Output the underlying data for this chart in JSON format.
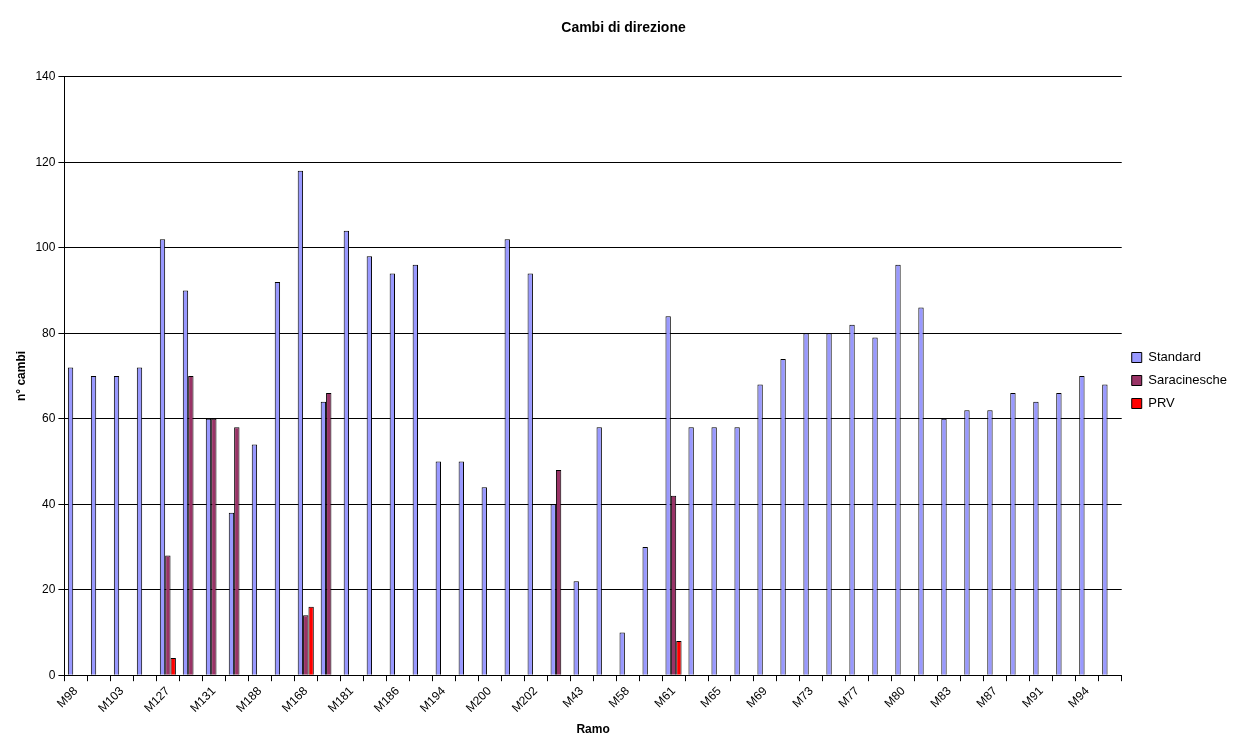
{
  "chart_data": {
    "type": "bar",
    "title": "Cambi di direzione",
    "xlabel": "Ramo",
    "ylabel": "n° cambi",
    "categories": [
      "M98",
      null,
      "M103",
      null,
      "M127",
      null,
      "M131",
      null,
      "M188",
      null,
      "M168",
      null,
      "M181",
      null,
      "M186",
      null,
      "M194",
      null,
      "M200",
      null,
      "M202",
      null,
      "M43",
      null,
      "M58",
      null,
      "M61",
      null,
      "M65",
      null,
      "M69",
      null,
      "M73",
      null,
      "M77",
      null,
      "M80",
      null,
      "M83",
      null,
      "M87",
      null,
      "M91",
      null,
      "M94",
      null
    ],
    "series": [
      {
        "name": "Standard",
        "color": "#9999ff",
        "values": [
          72,
          70,
          70,
          72,
          102,
          90,
          60,
          38,
          54,
          92,
          118,
          64,
          104,
          98,
          94,
          96,
          50,
          50,
          44,
          102,
          94,
          40,
          22,
          58,
          10,
          30,
          84,
          58,
          58,
          58,
          68,
          74,
          80,
          80,
          82,
          79,
          96,
          86,
          60,
          62,
          62,
          66,
          64,
          66,
          70,
          68
        ]
      },
      {
        "name": "Saracinesche",
        "color": "#993366",
        "values": [
          null,
          null,
          null,
          null,
          28,
          70,
          60,
          58,
          null,
          null,
          14,
          66,
          null,
          null,
          null,
          null,
          null,
          null,
          null,
          null,
          null,
          48,
          null,
          null,
          null,
          null,
          42,
          null,
          null,
          null,
          null,
          null,
          null,
          null,
          null,
          null,
          null,
          null,
          null,
          null,
          null,
          null,
          null,
          null,
          null,
          null
        ]
      },
      {
        "name": "PRV",
        "color": "#ff0000",
        "values": [
          null,
          null,
          null,
          null,
          4,
          null,
          null,
          null,
          null,
          null,
          16,
          null,
          null,
          null,
          null,
          null,
          null,
          null,
          null,
          null,
          null,
          null,
          null,
          null,
          null,
          null,
          8,
          null,
          null,
          null,
          null,
          null,
          null,
          null,
          null,
          null,
          null,
          null,
          null,
          null,
          null,
          null,
          null,
          null,
          null,
          null
        ]
      }
    ],
    "ylim": [
      0,
      140
    ],
    "yticks": [
      0,
      20,
      40,
      60,
      80,
      100,
      120,
      140
    ],
    "grid": "y",
    "legend": "right"
  }
}
